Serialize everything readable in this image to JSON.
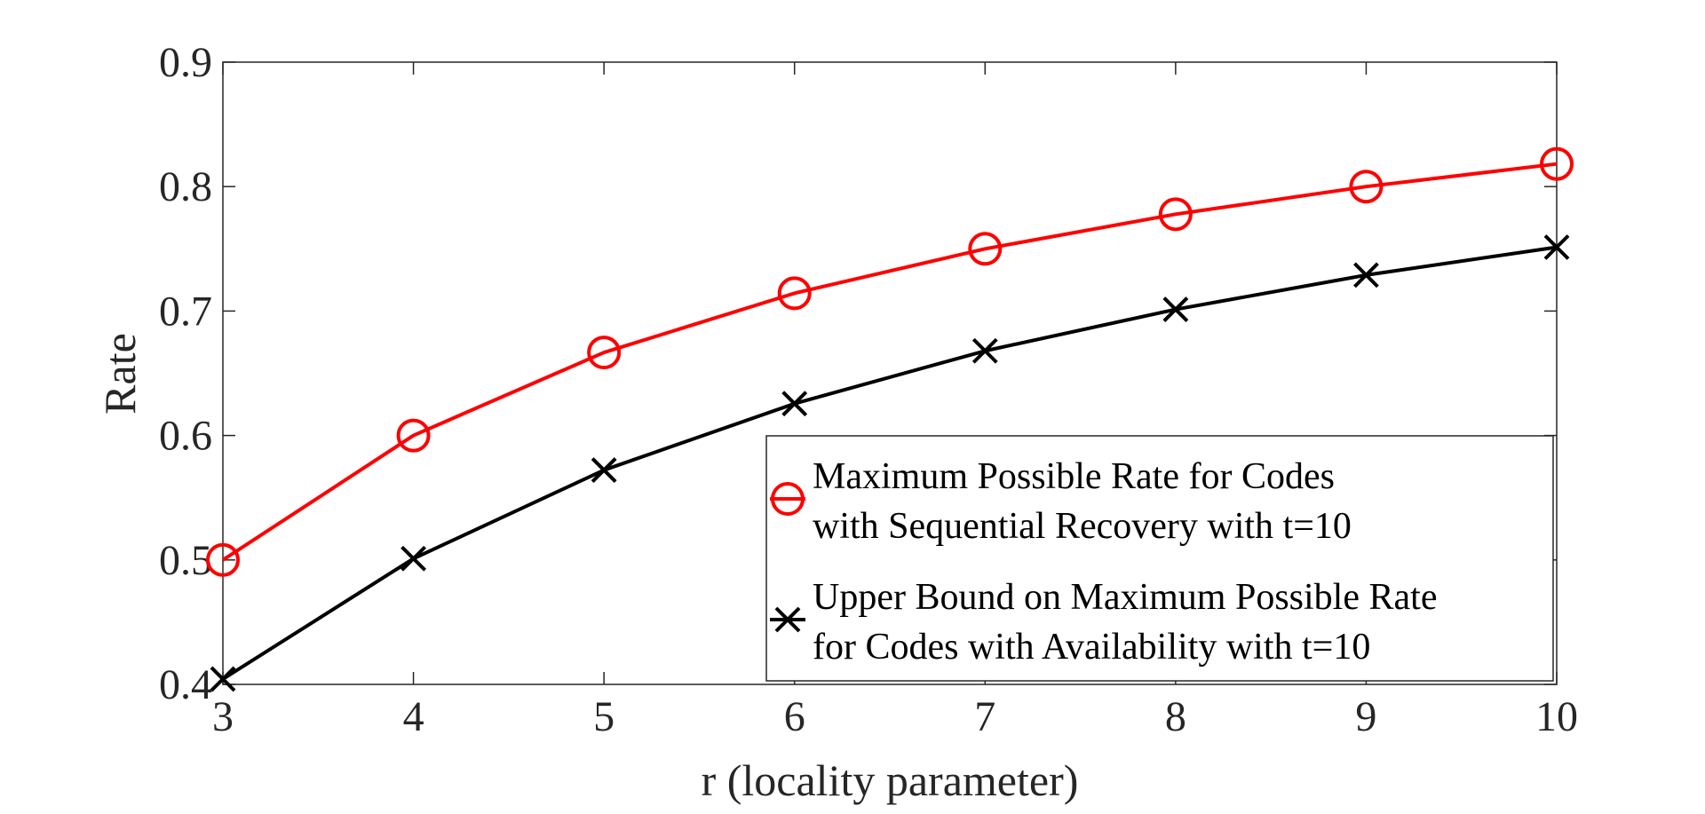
{
  "chart_data": {
    "type": "line",
    "title": "",
    "xlabel": "r  (locality parameter)",
    "ylabel": "Rate",
    "xlim": [
      3,
      10
    ],
    "ylim": [
      0.4,
      0.9
    ],
    "x": [
      3,
      4,
      5,
      6,
      7,
      8,
      9,
      10
    ],
    "xticks": [
      "3",
      "4",
      "5",
      "6",
      "7",
      "8",
      "9",
      "10"
    ],
    "yticks": [
      "0.4",
      "0.5",
      "0.6",
      "0.7",
      "0.8",
      "0.9"
    ],
    "grid": false,
    "legend_position": "bottom-right",
    "series": [
      {
        "name": "Maximum Possible Rate for Codes with Sequential Recovery with t=10",
        "legend_lines": [
          "Maximum Possible Rate for Codes",
          "with Sequential Recovery with t=10"
        ],
        "marker": "circle",
        "color": "#ff0000",
        "values": [
          0.5,
          0.6,
          0.6667,
          0.7143,
          0.75,
          0.7778,
          0.8,
          0.8182
        ]
      },
      {
        "name": "Upper Bound on Maximum Possible Rate for Codes with Availability with t=10",
        "legend_lines": [
          "Upper Bound on Maximum Possible Rate",
          "for Codes with Availability with t=10"
        ],
        "marker": "x",
        "color": "#000000",
        "values": [
          0.4043,
          0.5011,
          0.5722,
          0.6256,
          0.668,
          0.7013,
          0.7289,
          0.7513
        ]
      }
    ]
  }
}
